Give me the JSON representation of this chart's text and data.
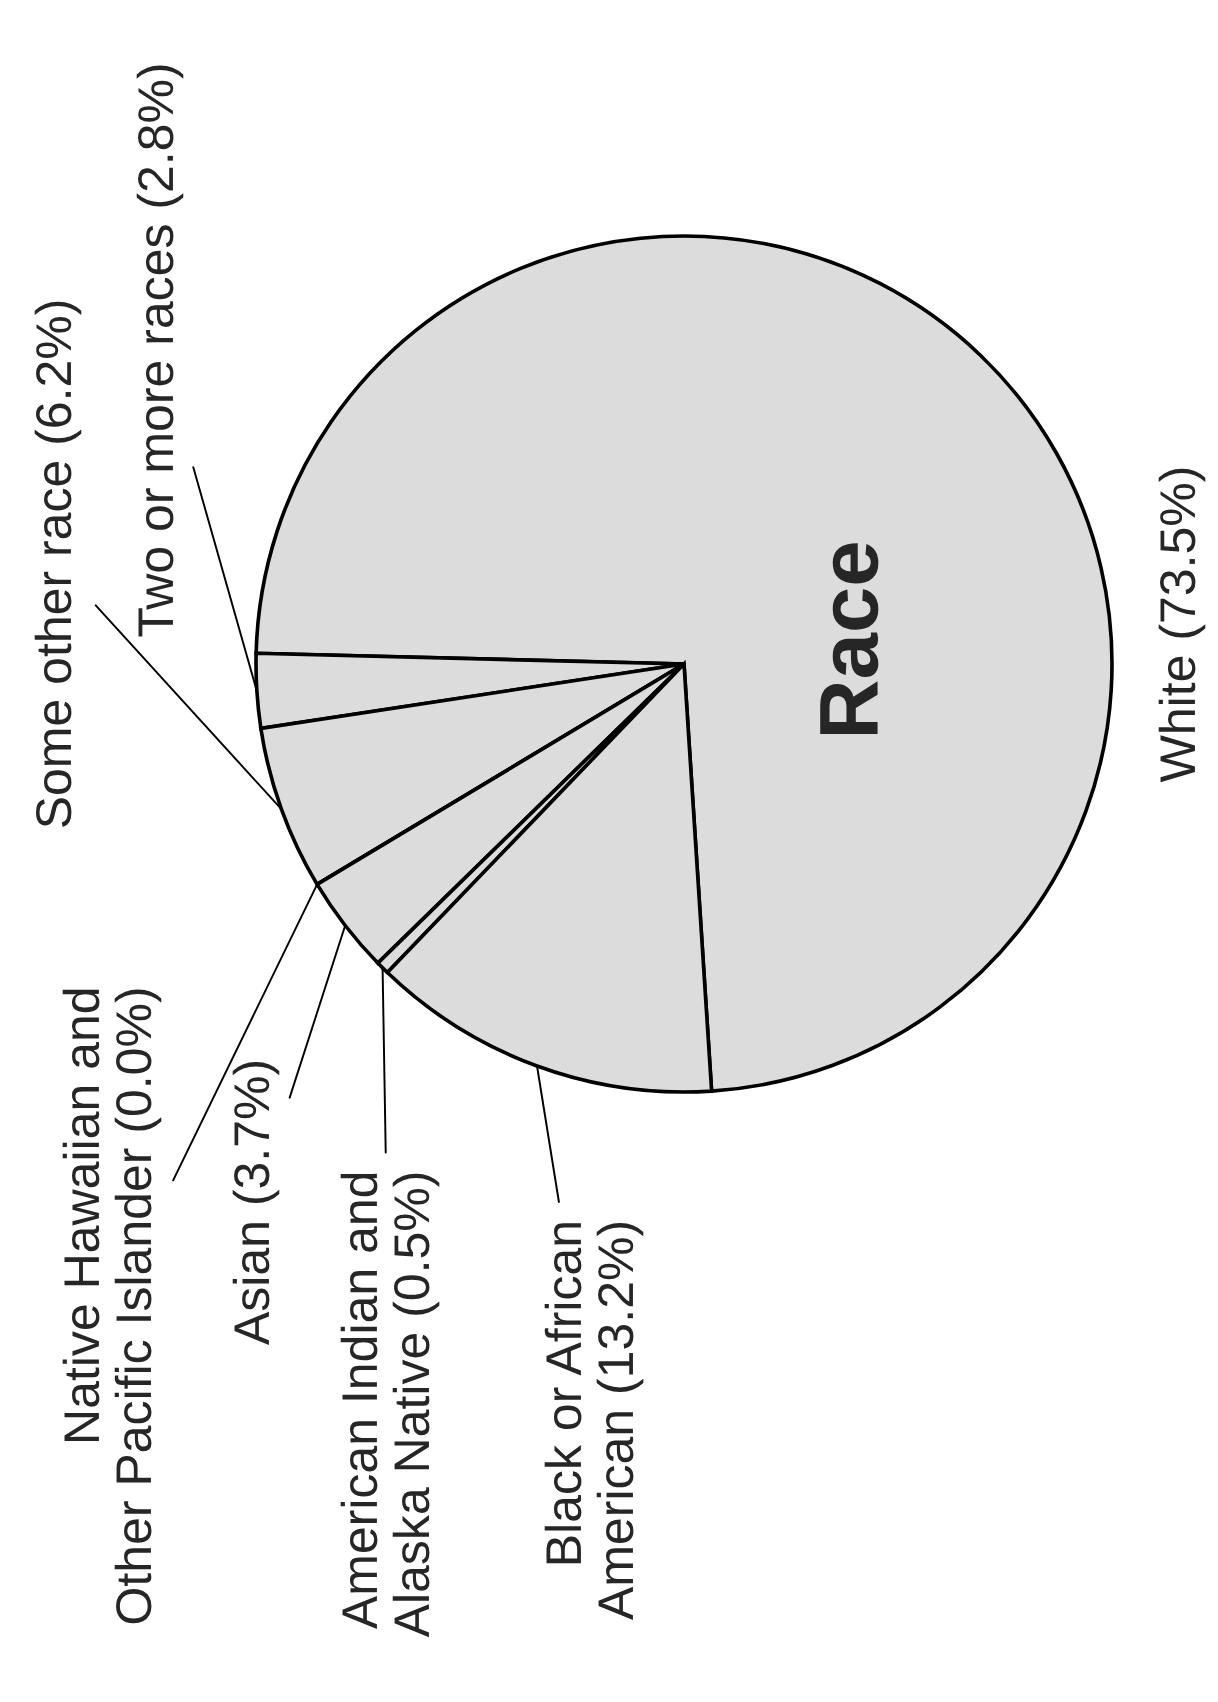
{
  "chart_data": {
    "type": "pie",
    "title": "Race",
    "categories": [
      "White (73.5%)",
      "Two or more races (2.8%)",
      "Some other race (6.2%)",
      "Native Hawaiian and\nOther Pacific Islander (0.0%)",
      "Asian (3.7%)",
      "American Indian and\nAlaska Native (0.5%)",
      "Black or African\nAmerican (13.2%)"
    ],
    "values": [
      73.5,
      2.8,
      6.2,
      0.0,
      3.7,
      0.5,
      13.2
    ],
    "colors": [
      "#dcdcdc",
      "#dcdcdc",
      "#dcdcdc",
      "#dcdcdc",
      "#dcdcdc",
      "#dcdcdc",
      "#dcdcdc"
    ]
  }
}
